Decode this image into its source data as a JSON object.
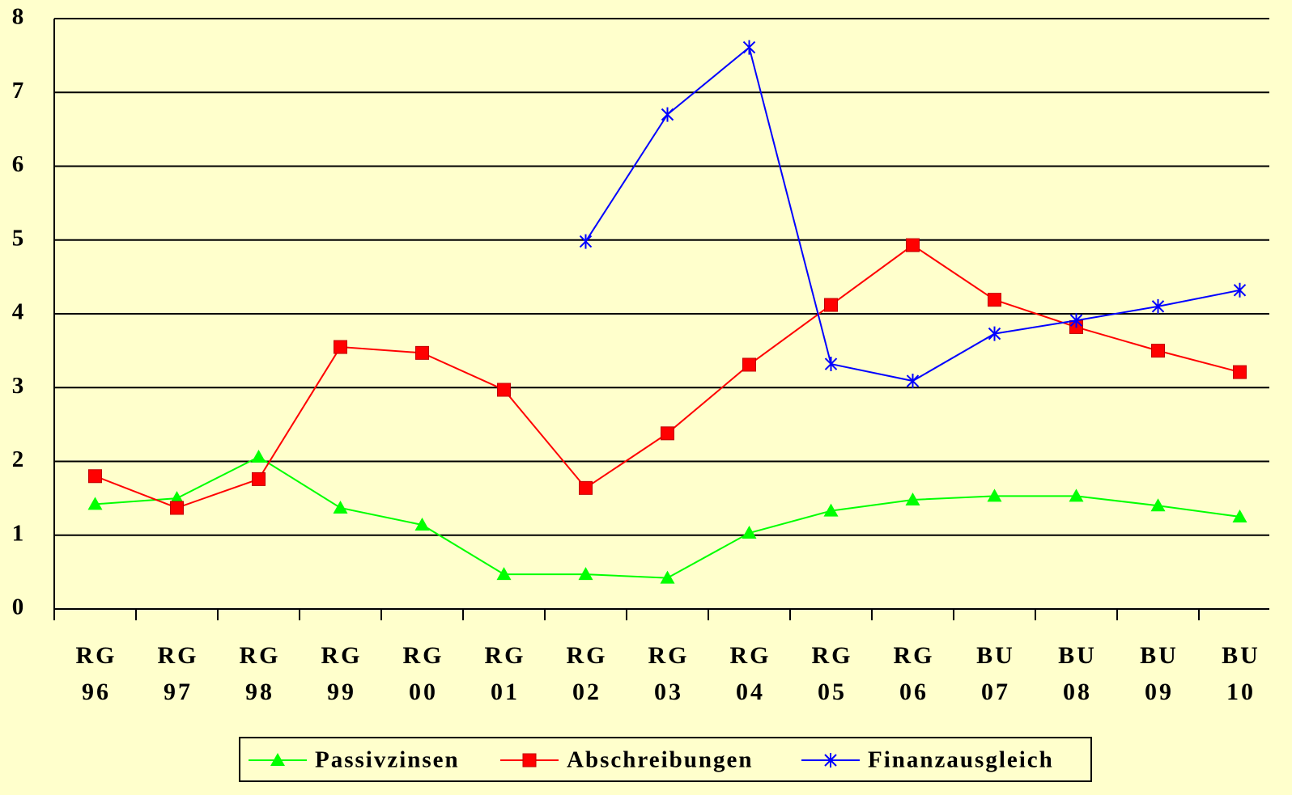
{
  "chart_data": {
    "type": "line",
    "categories": [
      "RG 96",
      "RG 97",
      "RG 98",
      "RG 99",
      "RG 00",
      "RG 01",
      "RG 02",
      "RG 03",
      "RG 04",
      "RG 05",
      "RG 06",
      "BU 07",
      "BU 08",
      "BU 09",
      "BU 10"
    ],
    "series": [
      {
        "name": "Passivzinsen",
        "color": "#00ff00",
        "marker": "triangle",
        "values": [
          1.42,
          1.5,
          2.06,
          1.37,
          1.14,
          0.47,
          0.47,
          0.42,
          1.03,
          1.33,
          1.48,
          1.53,
          1.53,
          1.4,
          1.25
        ]
      },
      {
        "name": "Abschreibungen",
        "color": "#ff0000",
        "marker": "square",
        "values": [
          1.8,
          1.37,
          1.76,
          3.55,
          3.47,
          2.97,
          1.64,
          2.38,
          3.31,
          4.12,
          4.93,
          4.19,
          3.82,
          3.5,
          3.21
        ]
      },
      {
        "name": "Finanzausgleich",
        "color": "#0000ff",
        "marker": "star",
        "values": [
          null,
          null,
          null,
          null,
          null,
          null,
          4.98,
          6.7,
          7.61,
          3.32,
          3.09,
          3.73,
          3.91,
          4.1,
          4.32
        ]
      }
    ],
    "ylim": [
      0,
      8
    ],
    "yticks": [
      0,
      1,
      2,
      3,
      4,
      5,
      6,
      7,
      8
    ],
    "grid": true,
    "legend": "bottom"
  }
}
